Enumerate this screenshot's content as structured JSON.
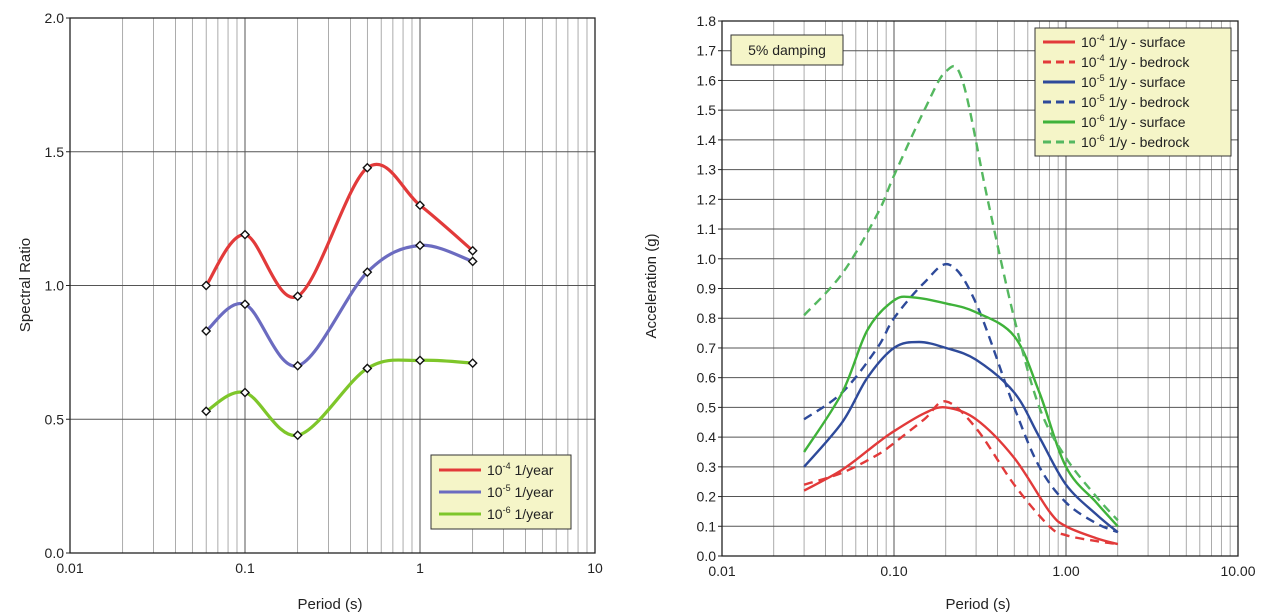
{
  "chart_data": [
    {
      "type": "line",
      "xlabel": "Period (s)",
      "ylabel": "Spectral Ratio",
      "xscale": "log",
      "xlim": [
        0.01,
        10
      ],
      "ylim": [
        0.0,
        2.0
      ],
      "x_ticks": [
        "0.01",
        "0.1",
        "1",
        "10"
      ],
      "y_ticks": [
        "0.0",
        "0.5",
        "1.0",
        "1.5",
        "2.0"
      ],
      "grid": true,
      "legend_position": "bottom-right",
      "legend_bg": "#f5f5c8",
      "x": [
        0.06,
        0.1,
        0.2,
        0.5,
        1.0,
        2.0
      ],
      "series": [
        {
          "name_prefix": "10",
          "name_exp": "-4",
          "name_suffix": " 1/year",
          "color": "#e23a3a",
          "values": [
            1.0,
            1.19,
            0.96,
            1.44,
            1.3,
            1.13
          ]
        },
        {
          "name_prefix": "10",
          "name_exp": "-5",
          "name_suffix": " 1/year",
          "color": "#6b6bc0",
          "values": [
            0.83,
            0.93,
            0.7,
            1.05,
            1.15,
            1.09
          ]
        },
        {
          "name_prefix": "10",
          "name_exp": "-6",
          "name_suffix": " 1/year",
          "color": "#7ec62a",
          "values": [
            0.53,
            0.6,
            0.44,
            0.69,
            0.72,
            0.71
          ]
        }
      ]
    },
    {
      "type": "line",
      "xlabel": "Period (s)",
      "ylabel": "Acceleration (g)",
      "xscale": "log",
      "xlim": [
        0.01,
        10
      ],
      "ylim": [
        0.0,
        1.8
      ],
      "x_ticks": [
        "0.01",
        "0.10",
        "1.00",
        "10.00"
      ],
      "y_ticks": [
        "0.0",
        "0.1",
        "0.2",
        "0.3",
        "0.4",
        "0.5",
        "0.6",
        "0.7",
        "0.8",
        "0.9",
        "1.0",
        "1.1",
        "1.2",
        "1.3",
        "1.4",
        "1.5",
        "1.6",
        "1.7",
        "1.8"
      ],
      "grid": true,
      "annotation": "5% damping",
      "legend_position": "top-right",
      "legend_bg": "#f5f5c8",
      "series": [
        {
          "name_prefix": "10",
          "name_exp": "-4",
          "name_suffix": " 1/y - surface",
          "color": "#e23a3a",
          "dashed": false,
          "x": [
            0.03,
            0.05,
            0.08,
            0.1,
            0.15,
            0.2,
            0.3,
            0.5,
            0.8,
            1.0,
            1.5,
            2.0
          ],
          "values": [
            0.22,
            0.29,
            0.38,
            0.42,
            0.48,
            0.5,
            0.46,
            0.33,
            0.15,
            0.1,
            0.06,
            0.04
          ]
        },
        {
          "name_prefix": "10",
          "name_exp": "-4",
          "name_suffix": " 1/y - bedrock",
          "color": "#e23a3a",
          "dashed": true,
          "x": [
            0.03,
            0.05,
            0.08,
            0.1,
            0.15,
            0.2,
            0.3,
            0.5,
            0.8,
            1.0,
            1.5,
            2.0
          ],
          "values": [
            0.24,
            0.28,
            0.34,
            0.38,
            0.46,
            0.52,
            0.43,
            0.24,
            0.1,
            0.07,
            0.05,
            0.04
          ]
        },
        {
          "name_prefix": "10",
          "name_exp": "-5",
          "name_suffix": " 1/y - surface",
          "color": "#2e4a9a",
          "dashed": false,
          "x": [
            0.03,
            0.05,
            0.07,
            0.1,
            0.14,
            0.2,
            0.3,
            0.5,
            0.7,
            1.0,
            1.5,
            2.0
          ],
          "values": [
            0.3,
            0.45,
            0.6,
            0.7,
            0.72,
            0.7,
            0.66,
            0.55,
            0.4,
            0.24,
            0.14,
            0.08
          ]
        },
        {
          "name_prefix": "10",
          "name_exp": "-5",
          "name_suffix": " 1/y - bedrock",
          "color": "#2e4a9a",
          "dashed": true,
          "x": [
            0.03,
            0.05,
            0.08,
            0.1,
            0.15,
            0.21,
            0.3,
            0.5,
            0.7,
            1.0,
            1.5,
            2.0
          ],
          "values": [
            0.46,
            0.55,
            0.7,
            0.8,
            0.92,
            0.98,
            0.85,
            0.5,
            0.3,
            0.18,
            0.11,
            0.08
          ]
        },
        {
          "name_prefix": "10",
          "name_exp": "-6",
          "name_suffix": " 1/y - surface",
          "color": "#3fb23a",
          "dashed": false,
          "x": [
            0.03,
            0.05,
            0.07,
            0.1,
            0.13,
            0.2,
            0.3,
            0.5,
            0.7,
            1.0,
            1.5,
            2.0
          ],
          "values": [
            0.35,
            0.55,
            0.76,
            0.86,
            0.87,
            0.85,
            0.82,
            0.74,
            0.55,
            0.3,
            0.18,
            0.1
          ]
        },
        {
          "name_prefix": "10",
          "name_exp": "-6",
          "name_suffix": " 1/y - bedrock",
          "color": "#55b860",
          "dashed": true,
          "x": [
            0.03,
            0.05,
            0.08,
            0.1,
            0.15,
            0.2,
            0.25,
            0.35,
            0.5,
            0.7,
            1.0,
            1.5,
            2.0
          ],
          "values": [
            0.81,
            0.95,
            1.15,
            1.28,
            1.5,
            1.63,
            1.6,
            1.2,
            0.8,
            0.5,
            0.33,
            0.2,
            0.12
          ]
        }
      ]
    }
  ]
}
